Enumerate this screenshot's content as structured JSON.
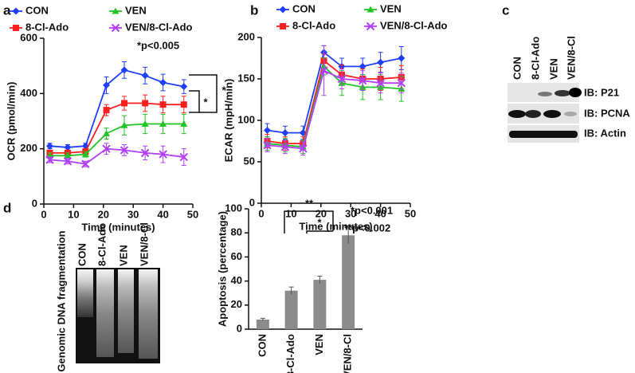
{
  "panel_labels": [
    "a",
    "b",
    "c",
    "d"
  ],
  "chart_data": [
    {
      "type": "line",
      "ylabel": "OCR (pmol/min)",
      "xlabel": "Time (minutes)",
      "x": [
        2,
        8,
        14,
        21,
        27,
        34,
        40,
        47
      ],
      "xlim": [
        0,
        50
      ],
      "xticks": [
        0,
        10,
        20,
        30,
        40,
        50
      ],
      "ylim": [
        0,
        600
      ],
      "yticks": [
        0,
        200,
        400,
        600
      ],
      "series": [
        {
          "name": "CON",
          "color": "#1f3fff",
          "marker": "diamond",
          "values": [
            210,
            205,
            210,
            430,
            485,
            465,
            440,
            425
          ],
          "errors": [
            10,
            10,
            10,
            30,
            30,
            30,
            30,
            25
          ]
        },
        {
          "name": "8-Cl-Ado",
          "color": "#ff1f1f",
          "marker": "square",
          "values": [
            185,
            185,
            190,
            340,
            365,
            365,
            360,
            360
          ],
          "errors": [
            10,
            10,
            10,
            20,
            25,
            30,
            30,
            30
          ]
        },
        {
          "name": "VEN",
          "color": "#22c322",
          "marker": "triangle",
          "values": [
            175,
            175,
            180,
            255,
            285,
            290,
            290,
            290
          ],
          "errors": [
            10,
            10,
            10,
            20,
            35,
            35,
            35,
            35
          ]
        },
        {
          "name": "VEN/8-Cl-Ado",
          "color": "#b23fff",
          "marker": "cross",
          "values": [
            160,
            155,
            145,
            200,
            195,
            185,
            180,
            170
          ],
          "errors": [
            10,
            10,
            10,
            20,
            20,
            25,
            30,
            30
          ]
        }
      ],
      "annotations": [
        "*p<0.005",
        "*",
        "*"
      ]
    },
    {
      "type": "line",
      "ylabel": "ECAR (mpH/min)",
      "xlabel": "Time (minutes)",
      "x": [
        2,
        8,
        14,
        21,
        27,
        34,
        40,
        47
      ],
      "xlim": [
        0,
        50
      ],
      "xticks": [
        0,
        10,
        20,
        30,
        40,
        50
      ],
      "ylim": [
        0,
        200
      ],
      "yticks": [
        0,
        50,
        100,
        150,
        200
      ],
      "series": [
        {
          "name": "CON",
          "color": "#1f3fff",
          "marker": "diamond",
          "values": [
            88,
            85,
            85,
            182,
            165,
            165,
            170,
            175
          ],
          "errors": [
            8,
            8,
            8,
            8,
            10,
            10,
            12,
            14
          ]
        },
        {
          "name": "8-Cl-Ado",
          "color": "#ff1f1f",
          "marker": "square",
          "values": [
            75,
            72,
            72,
            172,
            155,
            150,
            150,
            152
          ],
          "errors": [
            8,
            8,
            8,
            8,
            12,
            12,
            14,
            14
          ]
        },
        {
          "name": "VEN",
          "color": "#22c322",
          "marker": "triangle",
          "values": [
            72,
            70,
            68,
            165,
            145,
            140,
            140,
            138
          ],
          "errors": [
            8,
            8,
            8,
            10,
            15,
            15,
            15,
            15
          ]
        },
        {
          "name": "VEN/8-Cl-Ado",
          "color": "#b23fff",
          "marker": "cross",
          "values": [
            70,
            68,
            66,
            160,
            150,
            148,
            145,
            145
          ],
          "errors": [
            8,
            8,
            8,
            30,
            12,
            12,
            12,
            12
          ]
        }
      ],
      "annotations": []
    },
    {
      "type": "bar",
      "ylabel": "Apoptosis (percentage)",
      "color": "#8c8c8c",
      "categories": [
        "CON",
        "8-Cl-Ado",
        "VEN",
        "VEN/8-Cl"
      ],
      "values": [
        8,
        32,
        41,
        78
      ],
      "errors": [
        1,
        3,
        3,
        7
      ],
      "ylim": [
        0,
        100
      ],
      "yticks": [
        0,
        20,
        40,
        60,
        80,
        100
      ],
      "annotations": [
        "**",
        "*",
        "*p<0.001",
        "**p<0.002"
      ]
    }
  ],
  "blot": {
    "lanes": [
      "CON",
      "8-Cl-Ado",
      "VEN",
      "VEN/8-Cl"
    ],
    "rows": [
      "IB: P21",
      "IB: PCNA",
      "IB: Actin"
    ]
  },
  "gel": {
    "ylabel": "Genomic DNA fragmentation",
    "lanes": [
      "CON",
      "8-Cl-Ado",
      "VEN",
      "VEN/8-Cl"
    ]
  }
}
